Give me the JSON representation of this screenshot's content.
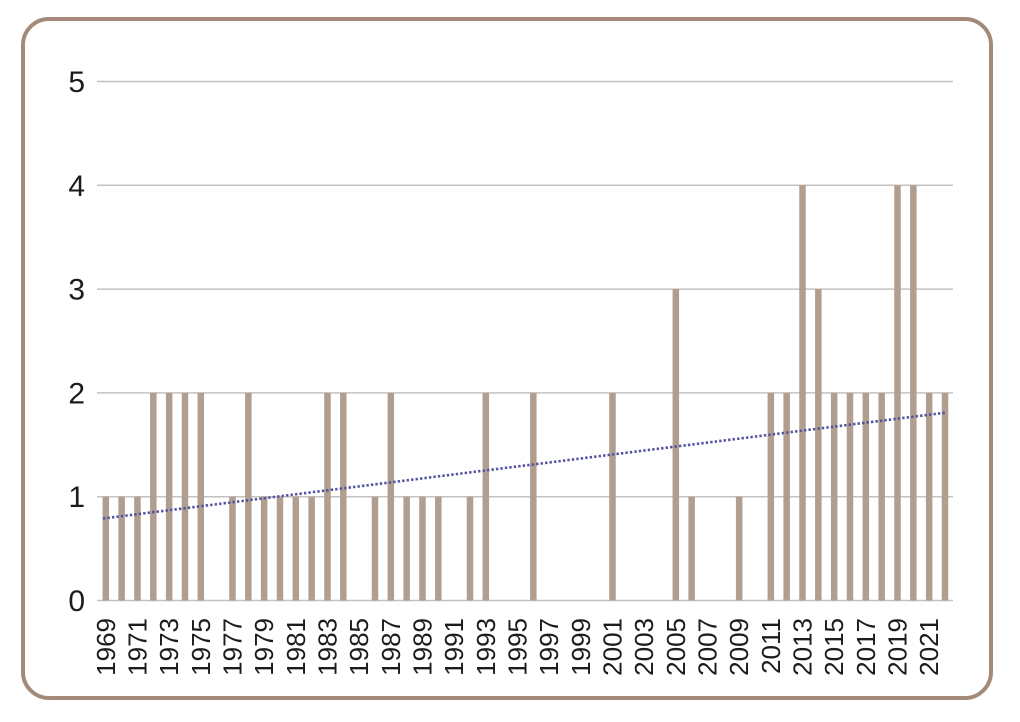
{
  "chart_data": {
    "type": "bar",
    "title": "",
    "xlabel": "",
    "ylabel": "",
    "categories": [
      1969,
      1970,
      1971,
      1972,
      1973,
      1974,
      1975,
      1976,
      1977,
      1978,
      1979,
      1980,
      1981,
      1982,
      1983,
      1984,
      1985,
      1986,
      1987,
      1988,
      1989,
      1990,
      1991,
      1992,
      1993,
      1994,
      1995,
      1996,
      1997,
      1998,
      1999,
      2000,
      2001,
      2002,
      2003,
      2004,
      2005,
      2006,
      2007,
      2008,
      2009,
      2010,
      2011,
      2012,
      2013,
      2014,
      2015,
      2016,
      2017,
      2018,
      2019,
      2020,
      2021,
      2022
    ],
    "values": [
      1,
      1,
      1,
      2,
      2,
      2,
      2,
      0,
      1,
      2,
      1,
      1,
      1,
      1,
      2,
      2,
      0,
      1,
      2,
      1,
      1,
      1,
      0,
      1,
      2,
      0,
      0,
      2,
      0,
      0,
      0,
      0,
      2,
      0,
      0,
      0,
      3,
      1,
      0,
      0,
      1,
      0,
      2,
      2,
      4,
      3,
      2,
      2,
      2,
      2,
      4,
      4,
      2,
      2
    ],
    "x_tick_labels": [
      "1969",
      "1971",
      "1973",
      "1975",
      "1977",
      "1979",
      "1981",
      "1983",
      "1985",
      "1987",
      "1989",
      "1991",
      "1993",
      "1995",
      "1997",
      "1999",
      "2001",
      "2003",
      "2005",
      "2007",
      "2009",
      "2011",
      "2013",
      "2015",
      "2017",
      "2019",
      "2021"
    ],
    "y_ticks": [
      0,
      1,
      2,
      3,
      4,
      5
    ],
    "ylim": [
      0,
      5
    ],
    "grid": "horizontal",
    "legend": "none",
    "trendline": {
      "type": "linear",
      "style": "dotted",
      "color": "#5454a0",
      "start_value": 0.79,
      "end_value": 1.81
    },
    "colors": {
      "bar": "#b19e8f",
      "gridline": "#c4c2c1",
      "label": "#1c1c1c",
      "frame": "#a48b79",
      "background": "#ffffff"
    }
  }
}
